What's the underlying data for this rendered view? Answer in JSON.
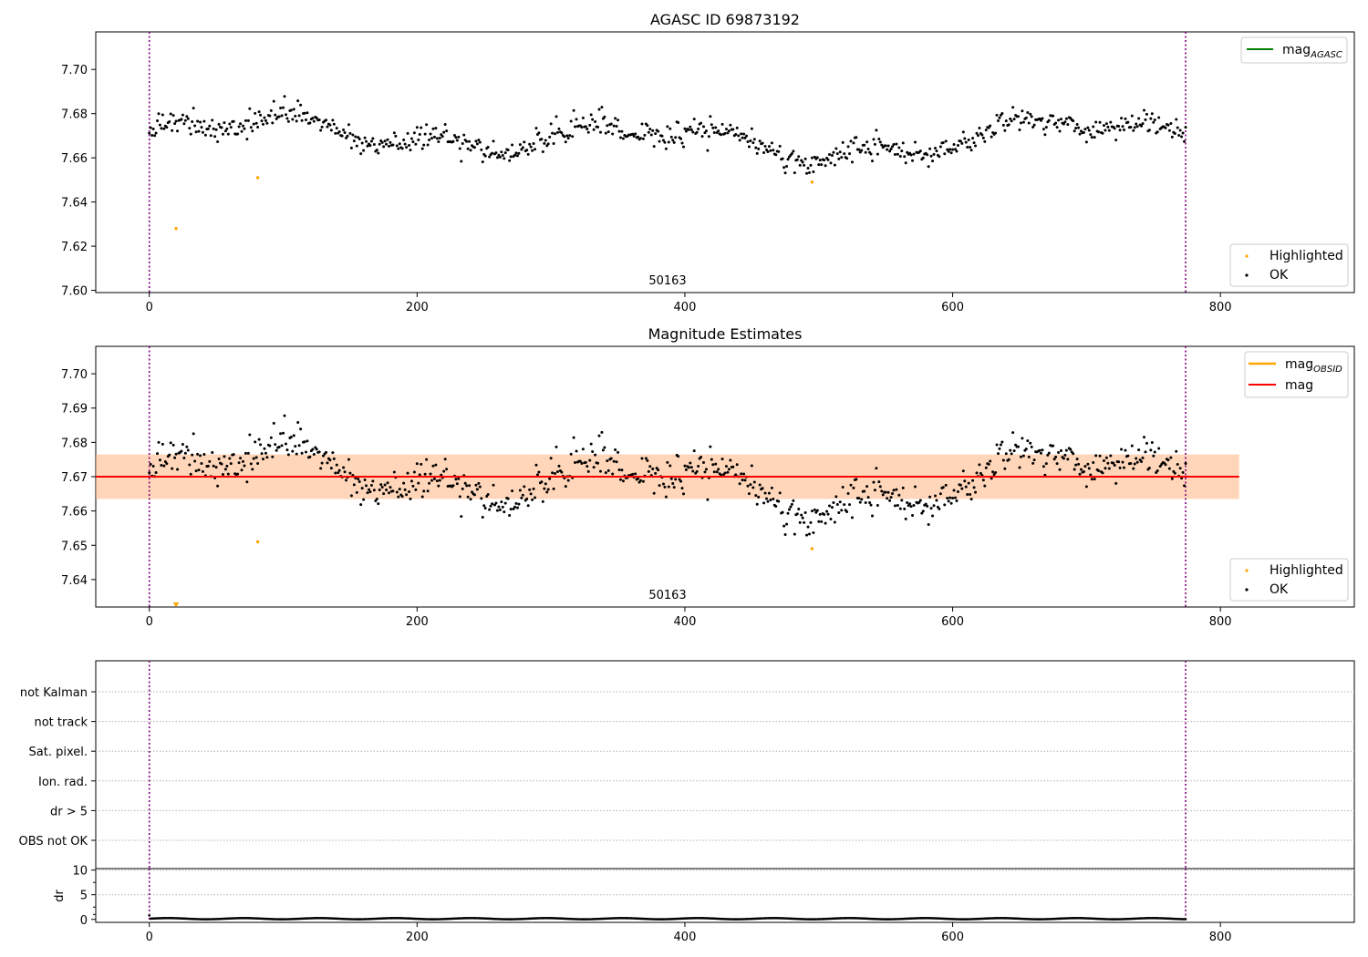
{
  "chart_data": [
    {
      "type": "scatter",
      "title": "AGASC ID 69873192",
      "xlim": [
        -40,
        900
      ],
      "ylim": [
        7.599,
        7.717
      ],
      "x_ticks": [
        "0",
        "200",
        "400",
        "600",
        "800"
      ],
      "y_ticks": [
        "7.60",
        "7.62",
        "7.64",
        "7.66",
        "7.68",
        "7.70"
      ],
      "obs_lines": [
        0,
        774
      ],
      "obsid_label": "50163",
      "obsid_label_x": 387,
      "legend_lines": [
        {
          "name": "mag",
          "sub": "AGASC",
          "color": "#008000"
        }
      ],
      "legend_points": [
        {
          "name": "Highlighted",
          "color": "#ffa500"
        },
        {
          "name": "OK",
          "color": "#000000"
        }
      ],
      "highlighted": [
        [
          20,
          7.628
        ],
        [
          81,
          7.651
        ],
        [
          495,
          7.649
        ]
      ],
      "series_ok": {
        "n": 775,
        "mean": 7.67,
        "noise": 0.0045,
        "seed": 1
      }
    },
    {
      "type": "scatter",
      "title": "Magnitude Estimates",
      "xlim": [
        -40,
        900
      ],
      "ylim": [
        7.632,
        7.708
      ],
      "x_ticks": [
        "0",
        "200",
        "400",
        "600",
        "800"
      ],
      "y_ticks": [
        "7.64",
        "7.65",
        "7.66",
        "7.67",
        "7.68",
        "7.69",
        "7.70"
      ],
      "obs_lines": [
        0,
        774
      ],
      "obsid_label": "50163",
      "obsid_label_x": 387,
      "mag_line": {
        "value": 7.67,
        "x_range": [
          -40,
          814
        ],
        "color": "#ff0000"
      },
      "mag_band": {
        "low": 7.6635,
        "high": 7.6765,
        "x_range": [
          -40,
          814
        ]
      },
      "legend_lines": [
        {
          "name": "mag",
          "sub": "OBSID",
          "color": "#ffa500"
        },
        {
          "name": "mag",
          "sub": "",
          "color": "#ff0000"
        }
      ],
      "legend_points": [
        {
          "name": "Highlighted",
          "color": "#ffa500"
        },
        {
          "name": "OK",
          "color": "#000000"
        }
      ],
      "highlighted": [
        [
          81,
          7.651
        ],
        [
          495,
          7.649
        ]
      ],
      "offscale_marker_x": 20,
      "series_ok": {
        "n": 775,
        "mean": 7.67,
        "noise": 0.0045,
        "seed": 1
      }
    },
    {
      "type": "scatter",
      "xlim": [
        -40,
        900
      ],
      "flag_labels": [
        "not Kalman",
        "not track",
        "Sat. pixel.",
        "Ion. rad.",
        "dr > 5",
        "OBS not OK"
      ],
      "obs_lines": [
        0,
        774
      ],
      "dr": {
        "ylabel": "dr",
        "y_ticks": [
          "0",
          "5",
          "10"
        ],
        "ylim": [
          -0.6,
          10.3
        ],
        "n": 775,
        "first": 0.8
      }
    }
  ]
}
